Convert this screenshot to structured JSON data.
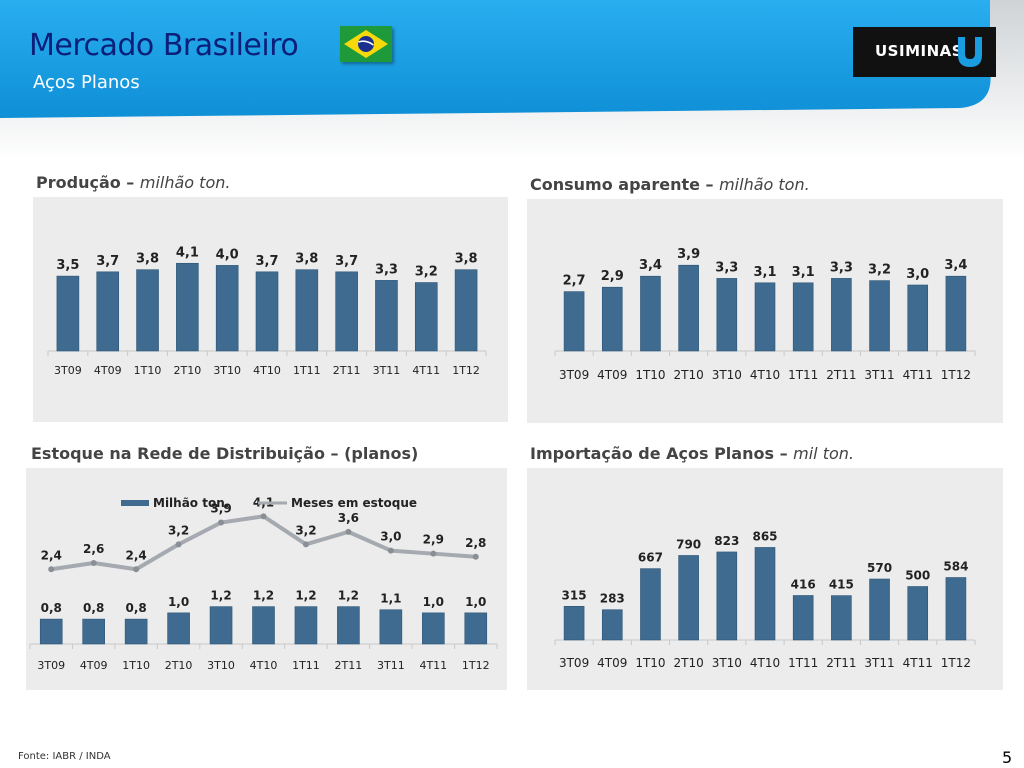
{
  "header": {
    "title": "Mercado Brasileiro",
    "subtitle": "Aços Planos",
    "flag_icon": "brazil-flag-icon",
    "logo_text": "USIMINAS",
    "logo_icon": "usiminas-u-icon",
    "colors": {
      "band": "#1a9ce0",
      "title": "#0a1f7a",
      "logo_bg": "#111111",
      "logo_mark": "#1a9ce0"
    }
  },
  "panels": {
    "producao": {
      "title": "Produção – ",
      "unit": "milhão ton."
    },
    "consumo": {
      "title": "Consumo aparente – ",
      "unit": "milhão ton."
    },
    "estoque": {
      "title": "Estoque na Rede de Distribuição – (planos)",
      "unit": ""
    },
    "importacao": {
      "title": "Importação de Aços Planos – ",
      "unit": "mil ton."
    }
  },
  "chart_data": [
    {
      "id": "producao",
      "type": "bar",
      "categories": [
        "3T09",
        "4T09",
        "1T10",
        "2T10",
        "3T10",
        "4T10",
        "1T11",
        "2T11",
        "3T11",
        "4T11",
        "1T12"
      ],
      "values": [
        3.5,
        3.7,
        3.8,
        4.1,
        4.0,
        3.7,
        3.8,
        3.7,
        3.3,
        3.2,
        3.8
      ],
      "data_labels": [
        "3,5",
        "3,7",
        "3,8",
        "4,1",
        "4,0",
        "3,7",
        "3,8",
        "3,7",
        "3,3",
        "3,2",
        "3,8"
      ],
      "ylim": [
        0,
        5
      ],
      "grid": false,
      "bar_color": "#3e6b8f"
    },
    {
      "id": "consumo",
      "type": "bar",
      "categories": [
        "3T09",
        "4T09",
        "1T10",
        "2T10",
        "3T10",
        "4T10",
        "1T11",
        "2T11",
        "3T11",
        "4T11",
        "1T12"
      ],
      "values": [
        2.7,
        2.9,
        3.4,
        3.9,
        3.3,
        3.1,
        3.1,
        3.3,
        3.2,
        3.0,
        3.4
      ],
      "data_labels": [
        "2,7",
        "2,9",
        "3,4",
        "3,9",
        "3,3",
        "3,1",
        "3,1",
        "3,3",
        "3,2",
        "3,0",
        "3,4"
      ],
      "ylim": [
        0,
        5
      ],
      "grid": false,
      "bar_color": "#3e6b8f"
    },
    {
      "id": "estoque",
      "type": "bar",
      "categories": [
        "3T09",
        "4T09",
        "1T10",
        "2T10",
        "3T10",
        "4T10",
        "1T11",
        "2T11",
        "3T11",
        "4T11",
        "1T12"
      ],
      "legend_position": "top",
      "series": [
        {
          "name": "Milhão ton.",
          "kind": "bar",
          "values": [
            0.8,
            0.8,
            0.8,
            1.0,
            1.2,
            1.2,
            1.2,
            1.2,
            1.1,
            1.0,
            1.0
          ],
          "data_labels": [
            "0,8",
            "0,8",
            "0,8",
            "1,0",
            "1,2",
            "1,2",
            "1,2",
            "1,2",
            "1,1",
            "1,0",
            "1,0"
          ],
          "ylim": [
            0,
            7
          ],
          "color": "#3e6b8f"
        },
        {
          "name": "Meses em estoque",
          "kind": "line",
          "values": [
            2.4,
            2.6,
            2.4,
            3.2,
            3.9,
            4.1,
            3.2,
            3.6,
            3.0,
            2.9,
            2.8
          ],
          "data_labels": [
            "2,4",
            "2,6",
            "2,4",
            "3,2",
            "3,9",
            "4,1",
            "3,2",
            "3,6",
            "3,0",
            "2,9",
            "2,8"
          ],
          "ylim": [
            0,
            7
          ],
          "color": "#a5a9b0"
        }
      ],
      "grid": false
    },
    {
      "id": "importacao",
      "type": "bar",
      "categories": [
        "3T09",
        "4T09",
        "1T10",
        "2T10",
        "3T10",
        "4T10",
        "1T11",
        "2T11",
        "3T11",
        "4T11",
        "1T12"
      ],
      "values": [
        315,
        283,
        667,
        790,
        823,
        865,
        416,
        415,
        570,
        500,
        584
      ],
      "data_labels": [
        "315",
        "283",
        "667",
        "790",
        "823",
        "865",
        "416",
        "415",
        "570",
        "500",
        "584"
      ],
      "ylim": [
        0,
        1000
      ],
      "grid": false,
      "bar_color": "#3e6b8f"
    }
  ],
  "footer": {
    "source": "Fonte: IABR / INDA",
    "page_number": "5"
  }
}
